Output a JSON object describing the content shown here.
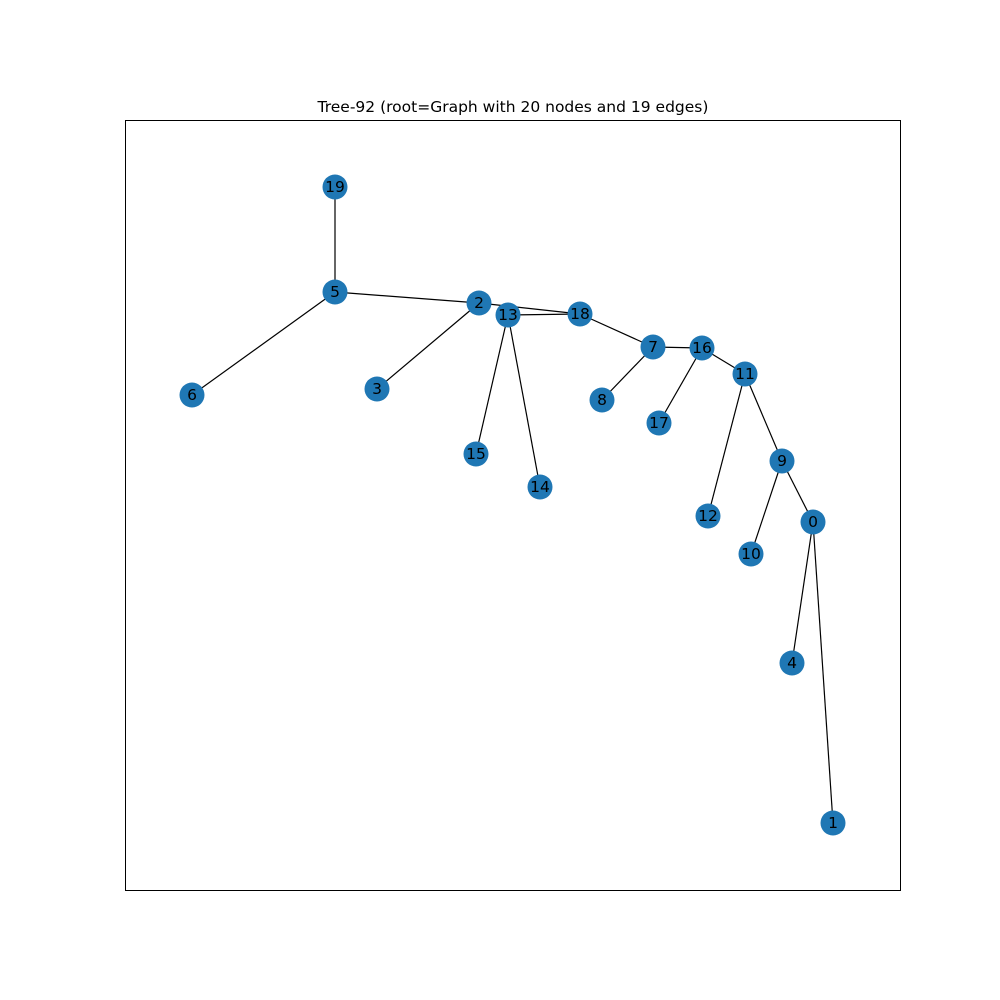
{
  "figure": {
    "title": "Tree-92 (root=Graph with 20 nodes and 19 edges)"
  },
  "graph": {
    "node_color": "#1f77b4",
    "edge_color": "#000000",
    "nodes": [
      "19",
      "5",
      "6",
      "2",
      "3",
      "13",
      "18",
      "15",
      "14",
      "7",
      "8",
      "16",
      "17",
      "11",
      "12",
      "9",
      "0",
      "10",
      "4",
      "1"
    ],
    "edges": [
      [
        "19",
        "5"
      ],
      [
        "5",
        "6"
      ],
      [
        "5",
        "2"
      ],
      [
        "2",
        "3"
      ],
      [
        "2",
        "18"
      ],
      [
        "13",
        "18"
      ],
      [
        "13",
        "15"
      ],
      [
        "13",
        "14"
      ],
      [
        "18",
        "7"
      ],
      [
        "7",
        "8"
      ],
      [
        "7",
        "16"
      ],
      [
        "16",
        "17"
      ],
      [
        "16",
        "11"
      ],
      [
        "11",
        "12"
      ],
      [
        "11",
        "9"
      ],
      [
        "9",
        "10"
      ],
      [
        "9",
        "0"
      ],
      [
        "0",
        "4"
      ],
      [
        "0",
        "1"
      ]
    ]
  }
}
